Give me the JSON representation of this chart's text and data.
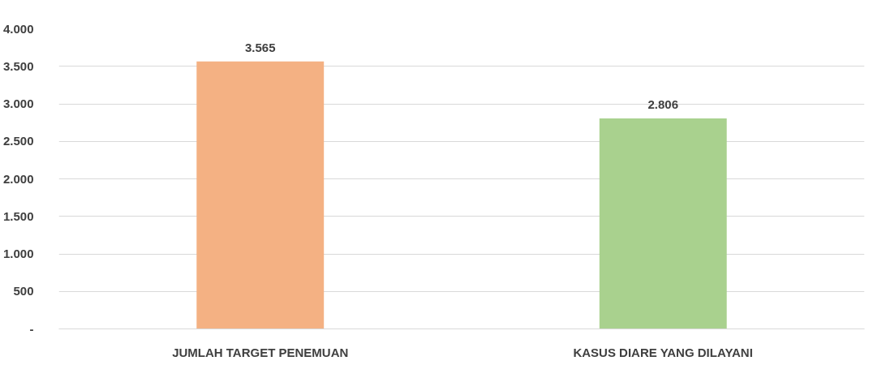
{
  "chart_data": {
    "type": "bar",
    "categories": [
      "JUMLAH TARGET PENEMUAN",
      "KASUS DIARE YANG DILAYANI"
    ],
    "values": [
      3565,
      2806
    ],
    "colors": [
      "#f4b183",
      "#a9d18e"
    ],
    "value_labels": [
      "3.565",
      "2.806"
    ],
    "ylim": [
      0,
      4000
    ],
    "yticks": [
      {
        "value": 0,
        "label": "-"
      },
      {
        "value": 500,
        "label": "500"
      },
      {
        "value": 1000,
        "label": "1.000"
      },
      {
        "value": 1500,
        "label": "1.500"
      },
      {
        "value": 2000,
        "label": "2.000"
      },
      {
        "value": 2500,
        "label": "2.500"
      },
      {
        "value": 3000,
        "label": "3.000"
      },
      {
        "value": 3500,
        "label": "3.500"
      },
      {
        "value": 4000,
        "label": "4.000"
      }
    ],
    "grid": "y"
  }
}
